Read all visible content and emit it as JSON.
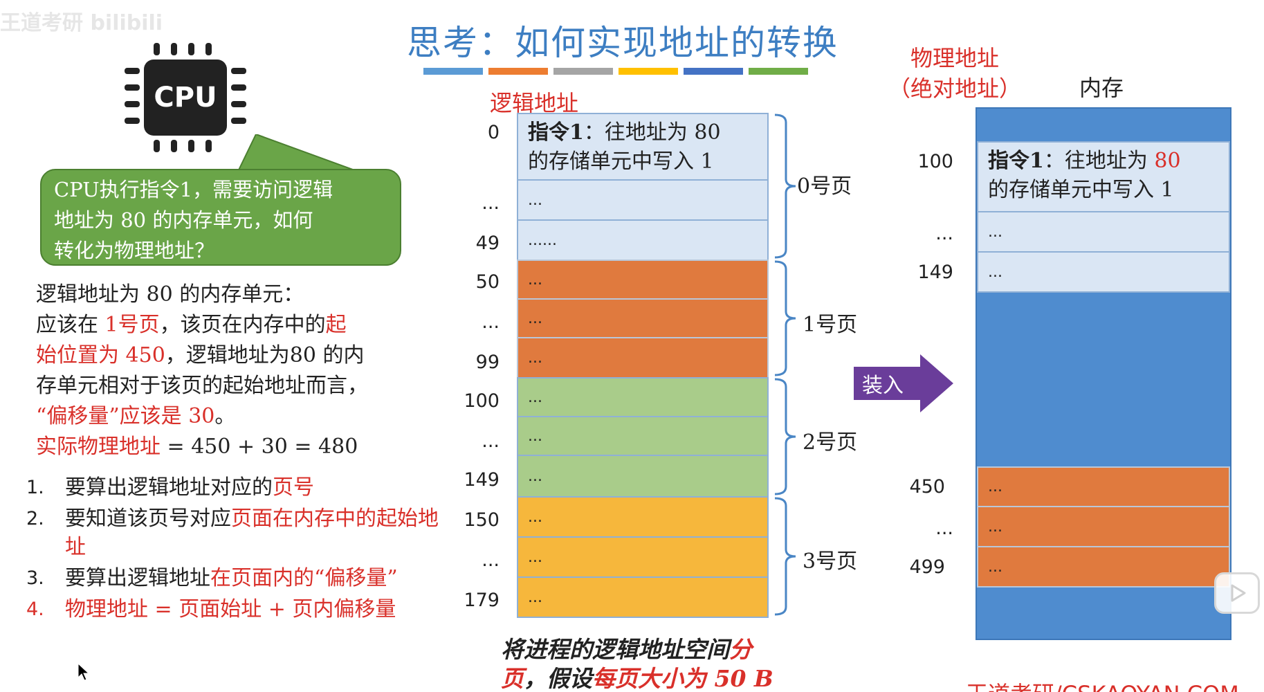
{
  "watermark_top": "王道考研 bilibili",
  "title": "思考：如何实现地址的转换",
  "title_bar_colors": [
    "#5b9bd5",
    "#ed7d31",
    "#a5a5a5",
    "#ffc000",
    "#4472c4",
    "#70ad47"
  ],
  "cpu": {
    "label": "CPU"
  },
  "bubble": {
    "lines": [
      "CPU执行指令1，需要访问逻辑",
      "地址为 80 的内存单元，如何",
      "转化为物理地址？"
    ]
  },
  "explanation": {
    "l1": "逻辑地址为 80 的内存单元：",
    "l2a": "应该在 ",
    "l2b": "1号页",
    "l2c": "，该页在内存中的",
    "l2d": "起",
    "l3a": "始位置为 450",
    "l3b": "，逻辑地址为80 的内",
    "l4": "存单元相对于该页的起始地址而言，",
    "l5a": "“偏移量”应该是 30",
    "l5b": "。",
    "l6a": "实际物理地址",
    "l6b": " = 450 + 30 = 480"
  },
  "steps": [
    {
      "num": "1.",
      "text": "要算出逻辑地址对应的",
      "red": "页号"
    },
    {
      "num": "2.",
      "text": "要知道该页号对应",
      "red": "页面在内存中的起始地址"
    },
    {
      "num": "3.",
      "text": "要算出逻辑地址",
      "red": "在页面内的“偏移量”"
    },
    {
      "num": "4.",
      "text": "",
      "red": "物理地址 = 页面始址 + 页内偏移量"
    }
  ],
  "logical": {
    "label": "逻辑地址",
    "addresses": [
      "0",
      "...",
      "49",
      "50",
      "...",
      "99",
      "100",
      "...",
      "149",
      "150",
      "...",
      "179"
    ],
    "instr_line1_bold": "指令1",
    "instr_line1_rest": "：往地址为 80",
    "instr_line2": "的存储单元中写入 1",
    "cells": [
      "...",
      "......",
      "...",
      "...",
      "...",
      "...",
      "...",
      "...",
      "...",
      "...",
      "..."
    ],
    "pages": [
      "0号页",
      "1号页",
      "2号页",
      "3号页"
    ]
  },
  "caption": {
    "a": "将进程的逻辑地址空间",
    "b": "分",
    "c": "页",
    "d": "，假设",
    "e": "每页大小为 50 B"
  },
  "load_label": "装入",
  "physical": {
    "label_line1": "物理地址",
    "label_line2": "（绝对地址）",
    "memory_label": "内存",
    "addresses": [
      "100",
      "...",
      "149",
      "450",
      "...",
      "499"
    ],
    "instr_line1_bold": "指令1",
    "instr_line1_rest": "：往地址为 ",
    "instr_line1_red": "80",
    "instr_line2": "的存储单元中写入 1",
    "cells": [
      "...",
      "...",
      "...",
      "...",
      "..."
    ]
  },
  "watermark_bottom": "王道考研/CSKAOYAN.COM",
  "colors": {
    "page0": "#dae6f4",
    "page1": "#e07a3e",
    "page2": "#a9cc8a",
    "page3": "#f6b73c",
    "memory": "#4f8ccf",
    "accent_red": "#d9302a",
    "title_blue": "#3d7ec2",
    "bubble_green": "#6aa548",
    "arrow_purple": "#6a3d9a"
  }
}
